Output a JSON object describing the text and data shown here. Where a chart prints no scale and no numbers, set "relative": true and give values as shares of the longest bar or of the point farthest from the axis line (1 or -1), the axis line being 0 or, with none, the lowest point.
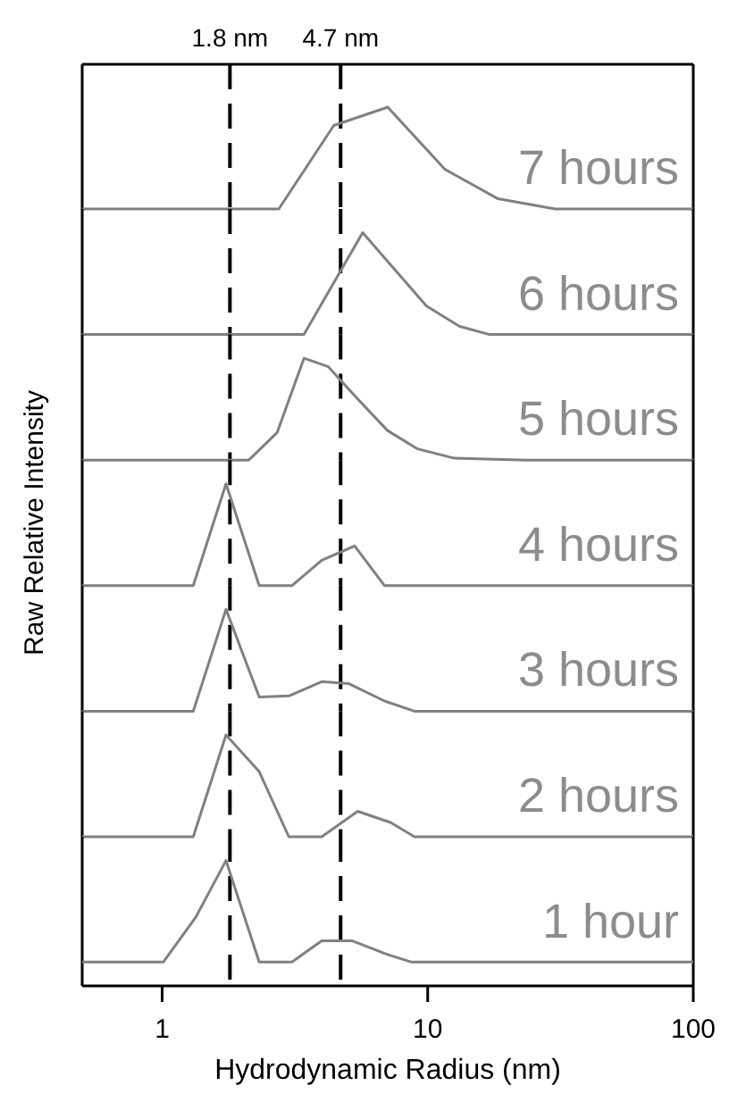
{
  "chart_data": [
    {
      "type": "line",
      "relative": true,
      "log": "x",
      "xlim": [
        0.5,
        100
      ],
      "tick_labels": false,
      "ref_lines": [
        {
          "axis": "x",
          "value": 1.8,
          "label": "1.8 nm",
          "color": "#000000",
          "line_style": "dashed"
        },
        {
          "axis": "x",
          "value": 4.7,
          "label": "4.7 nm",
          "color": "#000000",
          "line_style": "dashed"
        }
      ],
      "annotations": [
        "7 hours"
      ],
      "series": [
        {
          "color": "#808080",
          "x": [
            0.5,
            2.75,
            4.43,
            7.07,
            11.6,
            18.4,
            30.2,
            100
          ],
          "values": [
            0,
            0,
            0.82,
            1,
            0.39,
            0.1,
            0,
            0
          ]
        }
      ]
    },
    {
      "type": "line",
      "relative": true,
      "log": "x",
      "xlim": [
        0.5,
        100
      ],
      "tick_labels": false,
      "ref_lines": [
        {
          "axis": "x",
          "value": 1.8,
          "color": "#000000",
          "line_style": "dashed"
        },
        {
          "axis": "x",
          "value": 4.7,
          "color": "#000000",
          "line_style": "dashed"
        }
      ],
      "annotations": [
        "6 hours"
      ],
      "series": [
        {
          "color": "#808080",
          "x": [
            0.5,
            3.42,
            5.69,
            9.9,
            13.2,
            17.1,
            100
          ],
          "values": [
            0,
            0,
            1,
            0.28,
            0.08,
            0,
            0
          ]
        }
      ]
    },
    {
      "type": "line",
      "relative": true,
      "log": "x",
      "xlim": [
        0.5,
        100
      ],
      "tick_labels": false,
      "ref_lines": [
        {
          "axis": "x",
          "value": 1.8,
          "color": "#000000",
          "line_style": "dashed"
        },
        {
          "axis": "x",
          "value": 4.7,
          "color": "#000000",
          "line_style": "dashed"
        }
      ],
      "annotations": [
        "5 hours"
      ],
      "series": [
        {
          "color": "#808080",
          "x": [
            0.5,
            2.12,
            2.71,
            3.42,
            4.21,
            5.45,
            7.06,
            9.16,
            12.5,
            23.3,
            100
          ],
          "values": [
            0,
            0,
            0.27,
            1,
            0.92,
            0.6,
            0.29,
            0.11,
            0.02,
            0,
            0
          ]
        }
      ]
    },
    {
      "type": "line",
      "relative": true,
      "log": "x",
      "xlim": [
        0.5,
        100
      ],
      "tick_labels": false,
      "ylabel": "Raw Relative Intensity",
      "ref_lines": [
        {
          "axis": "x",
          "value": 1.8,
          "color": "#000000",
          "line_style": "dashed"
        },
        {
          "axis": "x",
          "value": 4.7,
          "color": "#000000",
          "line_style": "dashed"
        }
      ],
      "annotations": [
        "4 hours"
      ],
      "series": [
        {
          "color": "#808080",
          "x": [
            0.5,
            1.31,
            1.74,
            2.32,
            3.08,
            3.99,
            5.31,
            6.88,
            100
          ],
          "values": [
            0,
            0,
            1,
            0,
            0,
            0.25,
            0.39,
            0,
            0
          ]
        }
      ]
    },
    {
      "type": "line",
      "relative": true,
      "log": "x",
      "xlim": [
        0.5,
        100
      ],
      "tick_labels": false,
      "ref_lines": [
        {
          "axis": "x",
          "value": 1.8,
          "color": "#000000",
          "line_style": "dashed"
        },
        {
          "axis": "x",
          "value": 4.7,
          "color": "#000000",
          "line_style": "dashed"
        }
      ],
      "annotations": [
        "3 hours"
      ],
      "series": [
        {
          "color": "#808080",
          "x": [
            0.5,
            1.31,
            1.74,
            2.32,
            3.0,
            3.99,
            5.05,
            6.88,
            8.92,
            100
          ],
          "values": [
            0,
            0,
            1,
            0.14,
            0.15,
            0.29,
            0.27,
            0.1,
            0,
            0
          ]
        }
      ]
    },
    {
      "type": "line",
      "relative": true,
      "log": "x",
      "xlim": [
        0.5,
        100
      ],
      "tick_labels": false,
      "ref_lines": [
        {
          "axis": "x",
          "value": 1.8,
          "color": "#000000",
          "line_style": "dashed"
        },
        {
          "axis": "x",
          "value": 4.7,
          "color": "#000000",
          "line_style": "dashed"
        }
      ],
      "annotations": [
        "2 hours"
      ],
      "series": [
        {
          "color": "#808080",
          "x": [
            0.5,
            1.31,
            1.74,
            2.32,
            3.0,
            3.99,
            5.45,
            7.25,
            8.92,
            100
          ],
          "values": [
            0,
            0,
            1,
            0.64,
            0,
            0,
            0.25,
            0.14,
            0,
            0
          ]
        }
      ]
    },
    {
      "type": "line",
      "relative": true,
      "log": "x",
      "xlim": [
        0.5,
        100
      ],
      "xticks": [
        1,
        10,
        100
      ],
      "tick_labels": "x",
      "xlabel": "Hydrodynamic Radius (nm)",
      "ref_lines": [
        {
          "axis": "x",
          "value": 1.8,
          "color": "#000000",
          "line_style": "dashed"
        },
        {
          "axis": "x",
          "value": 4.7,
          "color": "#000000",
          "line_style": "dashed"
        }
      ],
      "annotations": [
        "1 hour"
      ],
      "series": [
        {
          "color": "#808080",
          "x": [
            0.5,
            1.01,
            1.34,
            1.74,
            2.32,
            3.08,
            3.99,
            5.18,
            7.06,
            8.7,
            100
          ],
          "values": [
            0.19,
            0.19,
            0.55,
            1,
            0.19,
            0.19,
            0.36,
            0.36,
            0.25,
            0.19,
            0.19
          ]
        }
      ]
    }
  ]
}
